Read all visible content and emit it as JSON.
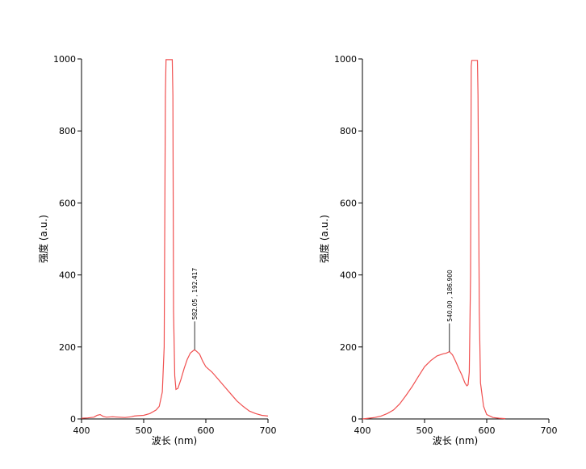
{
  "chart_data": [
    {
      "type": "line",
      "title": "",
      "xlabel": "波长 (nm)",
      "ylabel": "强度 (a.u.)",
      "xlim": [
        400,
        700
      ],
      "ylim": [
        0,
        1000
      ],
      "xticks": [
        400,
        500,
        600,
        700
      ],
      "yticks": [
        0,
        200,
        400,
        600,
        800,
        1000
      ],
      "grid": false,
      "line_color": "#f05050",
      "series": [
        {
          "x": [
            400,
            410,
            420,
            425,
            430,
            435,
            440,
            450,
            460,
            470,
            480,
            485,
            490,
            500,
            510,
            520,
            525,
            530,
            533,
            535,
            536,
            537,
            546,
            547,
            548,
            550,
            552,
            555,
            560,
            565,
            570,
            575,
            580,
            582,
            585,
            590,
            595,
            600,
            610,
            620,
            630,
            640,
            650,
            660,
            670,
            680,
            690,
            700
          ],
          "y": [
            2,
            3,
            5,
            10,
            12,
            7,
            5,
            6,
            5,
            4,
            6,
            8,
            9,
            10,
            15,
            25,
            35,
            75,
            200,
            900,
            998,
            998,
            998,
            900,
            300,
            120,
            82,
            85,
            110,
            140,
            165,
            183,
            190,
            192,
            188,
            180,
            160,
            145,
            130,
            110,
            90,
            70,
            50,
            35,
            22,
            15,
            10,
            8
          ]
        }
      ],
      "annotation": {
        "x": 582.05,
        "y": 192.417,
        "text": "582.05 , 192.417"
      }
    },
    {
      "type": "line",
      "title": "",
      "xlabel": "波长 (nm)",
      "ylabel": "强度 (a.u.)",
      "xlim": [
        400,
        700
      ],
      "ylim": [
        0,
        1000
      ],
      "xticks": [
        400,
        500,
        600,
        700
      ],
      "yticks": [
        0,
        200,
        400,
        600,
        800,
        1000
      ],
      "grid": false,
      "line_color": "#f05050",
      "series": [
        {
          "x": [
            400,
            410,
            420,
            430,
            440,
            450,
            460,
            470,
            480,
            490,
            500,
            510,
            520,
            530,
            535,
            540,
            545,
            550,
            555,
            560,
            565,
            568,
            570,
            572,
            574,
            575,
            576,
            585,
            586,
            588,
            590,
            595,
            600,
            610,
            620,
            630
          ],
          "y": [
            0,
            2,
            4,
            8,
            15,
            25,
            42,
            65,
            90,
            118,
            145,
            162,
            175,
            181,
            183,
            187,
            178,
            160,
            140,
            122,
            100,
            92,
            95,
            130,
            400,
            980,
            996,
            996,
            900,
            300,
            100,
            35,
            12,
            4,
            2,
            1
          ]
        }
      ],
      "annotation": {
        "x": 540.0,
        "y": 186.9,
        "text": "540.00 , 186.900"
      }
    }
  ]
}
